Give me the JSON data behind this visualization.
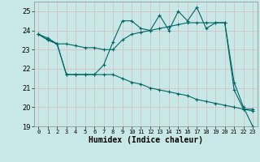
{
  "xlabel": "Humidex (Indice chaleur)",
  "background_color": "#c8e8e8",
  "line_color": "#006666",
  "grid_color": "#d8b8b8",
  "xlim": [
    -0.5,
    23.5
  ],
  "ylim": [
    19,
    25.5
  ],
  "yticks": [
    19,
    20,
    21,
    22,
    23,
    24,
    25
  ],
  "xticks": [
    0,
    1,
    2,
    3,
    4,
    5,
    6,
    7,
    8,
    9,
    10,
    11,
    12,
    13,
    14,
    15,
    16,
    17,
    18,
    19,
    20,
    21,
    22,
    23
  ],
  "line1": [
    23.8,
    23.6,
    23.3,
    21.7,
    21.7,
    21.7,
    21.7,
    22.2,
    23.4,
    24.5,
    24.5,
    24.1,
    24.0,
    24.8,
    24.0,
    25.0,
    24.5,
    25.2,
    24.1,
    24.4,
    24.4,
    20.9,
    19.9,
    19.9
  ],
  "line2": [
    23.8,
    23.5,
    23.3,
    23.3,
    23.2,
    23.1,
    23.1,
    23.0,
    23.0,
    23.5,
    23.8,
    23.9,
    24.0,
    24.1,
    24.2,
    24.3,
    24.4,
    24.4,
    24.4,
    24.4,
    24.4,
    21.3,
    20.0,
    19.0
  ],
  "line3": [
    23.8,
    23.5,
    23.3,
    21.7,
    21.7,
    21.7,
    21.7,
    21.7,
    21.7,
    21.5,
    21.3,
    21.2,
    21.0,
    20.9,
    20.8,
    20.7,
    20.6,
    20.4,
    20.3,
    20.2,
    20.1,
    20.0,
    19.9,
    19.8
  ]
}
